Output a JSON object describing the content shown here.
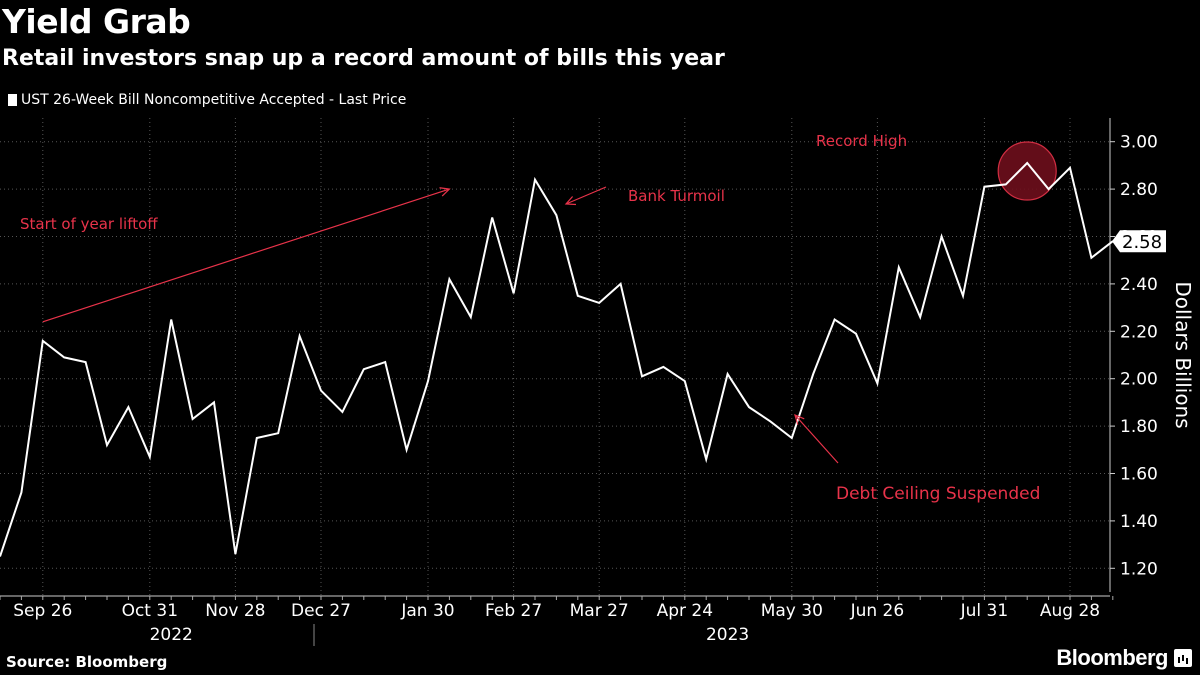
{
  "header": {
    "title": "Yield Grab",
    "subtitle": "Retail investors snap up a record amount of bills this year"
  },
  "footer": {
    "source": "Source: Bloomberg",
    "brand": "Bloomberg",
    "brand_icon": "bloomberg-terminal-icon"
  },
  "colors": {
    "background": "#000000",
    "line": "#ffffff",
    "annotation": "#e8334a",
    "highlight_fill": "#6e0f1c",
    "grid": "#555555"
  },
  "chart_data": {
    "type": "line",
    "title": "Yield Grab",
    "subtitle": "Retail investors snap up a record amount of bills this year",
    "ylabel": "Dollars Billions",
    "y_axis_position": "right",
    "ylim": [
      1.1,
      3.1
    ],
    "yticks": [
      1.2,
      1.4,
      1.6,
      1.8,
      2.0,
      2.2,
      2.4,
      2.6,
      2.8,
      3.0
    ],
    "ytick_labels": [
      "1.20",
      "1.40",
      "1.60",
      "1.80",
      "2.00",
      "2.20",
      "2.40",
      "2.60",
      "2.80",
      "3.00"
    ],
    "grid": true,
    "legend_position": "top-left",
    "x_tick_labels": [
      {
        "label": "Sep 26",
        "index": 2
      },
      {
        "label": "Oct 31",
        "index": 7
      },
      {
        "label": "Nov 28",
        "index": 11
      },
      {
        "label": "Dec 27",
        "index": 15
      },
      {
        "label": "Jan 30",
        "index": 20
      },
      {
        "label": "Feb 27",
        "index": 24
      },
      {
        "label": "Mar 27",
        "index": 28
      },
      {
        "label": "Apr 24",
        "index": 32
      },
      {
        "label": "May 30",
        "index": 37
      },
      {
        "label": "Jun 26",
        "index": 41
      },
      {
        "label": "Jul 31",
        "index": 46
      },
      {
        "label": "Aug 28",
        "index": 50
      }
    ],
    "year_labels": [
      {
        "label": "2022",
        "index": 8
      },
      {
        "label": "2023",
        "index": 34
      }
    ],
    "series": [
      {
        "name": "UST 26-Week Bill Noncompetitive Accepted - Last Price",
        "last_value_label": "2.58",
        "values": [
          1.25,
          1.52,
          2.16,
          2.09,
          2.07,
          1.72,
          1.88,
          1.67,
          2.25,
          1.83,
          1.9,
          1.26,
          1.75,
          1.77,
          2.18,
          1.95,
          1.86,
          2.04,
          2.07,
          1.7,
          1.99,
          2.42,
          2.26,
          2.68,
          2.36,
          2.84,
          2.69,
          2.35,
          2.32,
          2.4,
          2.01,
          2.05,
          1.99,
          1.66,
          2.02,
          1.88,
          1.82,
          1.75,
          2.02,
          2.25,
          2.19,
          1.98,
          2.47,
          2.26,
          2.6,
          2.35,
          2.81,
          2.82,
          2.91,
          2.8,
          2.89,
          2.51,
          2.58
        ]
      }
    ],
    "annotations": [
      {
        "text": "Start of year liftoff",
        "anchor_index": 2,
        "anchor_value": 2.24,
        "target_index": 21,
        "target_value": 2.8
      },
      {
        "text": "Bank Turmoil",
        "anchor_index": 29,
        "anchor_value": 2.87,
        "target_index": 27,
        "target_value": 2.72
      },
      {
        "text": "Debt Ceiling Suspended",
        "anchor_index": 40,
        "anchor_value": 1.6,
        "target_index": 38,
        "target_value": 1.84
      },
      {
        "text": "Record High",
        "anchor_index": 48,
        "anchor_value": 2.91
      }
    ]
  }
}
